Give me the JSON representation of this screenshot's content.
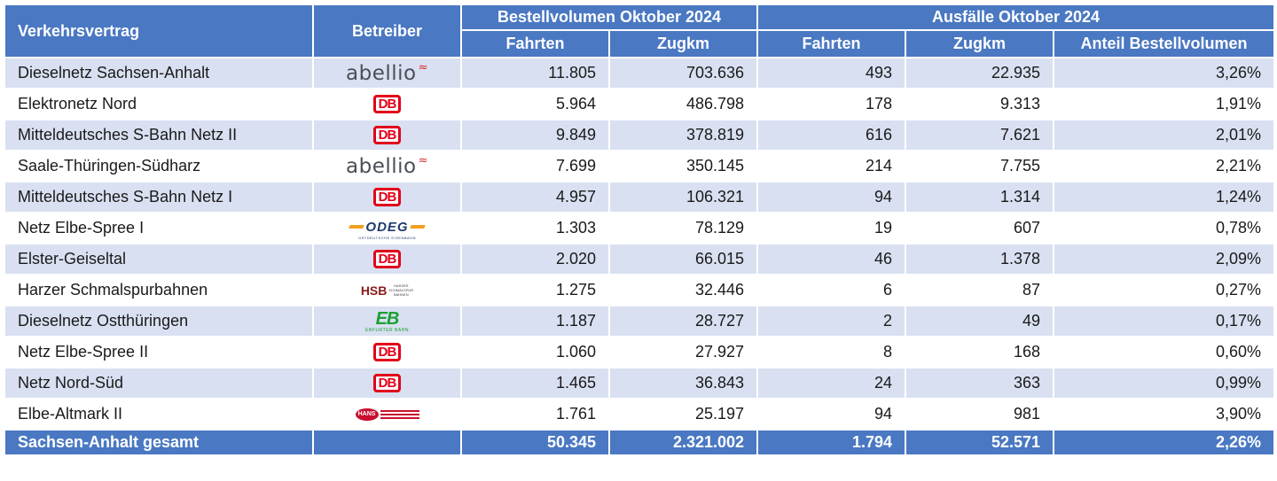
{
  "header": {
    "contract_label": "Verkehrsvertrag",
    "operator_label": "Betreiber",
    "ordered_group": "Bestellvolumen Oktober 2024",
    "failures_group": "Ausfälle Oktober 2024",
    "trips": "Fahrten",
    "train_km": "Zugkm",
    "share": "Anteil Bestellvolumen"
  },
  "rows": [
    {
      "name": "Dieselnetz Sachsen-Anhalt",
      "operator": "abellio",
      "trips": "11.805",
      "km": "703.636",
      "f_trips": "493",
      "f_km": "22.935",
      "share": "3,26%"
    },
    {
      "name": "Elektronetz Nord",
      "operator": "DB",
      "trips": "5.964",
      "km": "486.798",
      "f_trips": "178",
      "f_km": "9.313",
      "share": "1,91%"
    },
    {
      "name": "Mitteldeutsches S-Bahn Netz II",
      "operator": "DB",
      "trips": "9.849",
      "km": "378.819",
      "f_trips": "616",
      "f_km": "7.621",
      "share": "2,01%"
    },
    {
      "name": "Saale-Thüringen-Südharz",
      "operator": "abellio",
      "trips": "7.699",
      "km": "350.145",
      "f_trips": "214",
      "f_km": "7.755",
      "share": "2,21%"
    },
    {
      "name": "Mitteldeutsches S-Bahn Netz I",
      "operator": "DB",
      "trips": "4.957",
      "km": "106.321",
      "f_trips": "94",
      "f_km": "1.314",
      "share": "1,24%"
    },
    {
      "name": "Netz Elbe-Spree I",
      "operator": "ODEG",
      "trips": "1.303",
      "km": "78.129",
      "f_trips": "19",
      "f_km": "607",
      "share": "0,78%"
    },
    {
      "name": "Elster-Geiseltal",
      "operator": "DB",
      "trips": "2.020",
      "km": "66.015",
      "f_trips": "46",
      "f_km": "1.378",
      "share": "2,09%"
    },
    {
      "name": "Harzer Schmalspurbahnen",
      "operator": "HSB",
      "trips": "1.275",
      "km": "32.446",
      "f_trips": "6",
      "f_km": "87",
      "share": "0,27%"
    },
    {
      "name": "Dieselnetz Ostthüringen",
      "operator": "EB",
      "trips": "1.187",
      "km": "28.727",
      "f_trips": "2",
      "f_km": "49",
      "share": "0,17%"
    },
    {
      "name": "Netz Elbe-Spree II",
      "operator": "DB",
      "trips": "1.060",
      "km": "27.927",
      "f_trips": "8",
      "f_km": "168",
      "share": "0,60%"
    },
    {
      "name": "Netz Nord-Süd",
      "operator": "DB",
      "trips": "1.465",
      "km": "36.843",
      "f_trips": "24",
      "f_km": "363",
      "share": "0,99%"
    },
    {
      "name": "Elbe-Altmark II",
      "operator": "HANS",
      "trips": "1.761",
      "km": "25.197",
      "f_trips": "94",
      "f_km": "981",
      "share": "3,90%"
    }
  ],
  "total": {
    "name": "Sachsen-Anhalt gesamt",
    "trips": "50.345",
    "km": "2.321.002",
    "f_trips": "1.794",
    "f_km": "52.571",
    "share": "2,26%"
  },
  "logos": {
    "db": "DB",
    "abellio": "abellio",
    "odeg": "ODEG",
    "odeg_sub": "OSTDEUTSCHE EISENBAHN",
    "hsb": "HSB",
    "hsb_small": [
      "HARZER",
      "SCHMALSPUR",
      "BAHNEN"
    ],
    "eb": "EB",
    "eb_sub": "ERFURTER BAHN",
    "hans": "HANS"
  },
  "colors": {
    "header_blue": "#4a78c2",
    "row_stripe": "#d9e0f1",
    "db_red": "#e2001a"
  }
}
